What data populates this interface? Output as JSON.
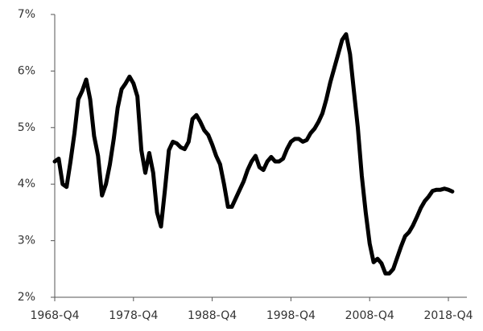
{
  "chart_data": {
    "type": "line",
    "categories": [
      "1968-Q4",
      null,
      null,
      null,
      null,
      null,
      null,
      null,
      null,
      null,
      null,
      null,
      null,
      null,
      null,
      null,
      null,
      null,
      null,
      null,
      "1978-Q4",
      null,
      null,
      null,
      null,
      null,
      null,
      null,
      null,
      null,
      null,
      null,
      null,
      null,
      null,
      null,
      null,
      null,
      null,
      null,
      "1988-Q4",
      null,
      null,
      null,
      null,
      null,
      null,
      null,
      null,
      null,
      null,
      null,
      null,
      null,
      null,
      null,
      null,
      null,
      null,
      null,
      "1998-Q4",
      null,
      null,
      null,
      null,
      null,
      null,
      null,
      null,
      null,
      null,
      null,
      null,
      null,
      null,
      null,
      null,
      null,
      null,
      null,
      "2008-Q4",
      null,
      null,
      null,
      null,
      null,
      null,
      null,
      null,
      null,
      null,
      null,
      null,
      null,
      null,
      null,
      null,
      null,
      null,
      null,
      "2018-Q4",
      null
    ],
    "values": [
      4.4,
      4.45,
      4.0,
      3.95,
      4.4,
      4.9,
      5.5,
      5.65,
      5.85,
      5.5,
      4.85,
      4.5,
      3.8,
      4.0,
      4.35,
      4.8,
      5.35,
      5.68,
      5.78,
      5.9,
      5.78,
      5.55,
      4.6,
      4.2,
      4.55,
      4.2,
      3.5,
      3.25,
      3.9,
      4.6,
      4.75,
      4.72,
      4.65,
      4.62,
      4.75,
      5.15,
      5.22,
      5.1,
      4.95,
      4.87,
      4.7,
      4.5,
      4.35,
      4.0,
      3.6,
      3.6,
      3.75,
      3.9,
      4.05,
      4.25,
      4.4,
      4.5,
      4.3,
      4.25,
      4.4,
      4.48,
      4.4,
      4.4,
      4.45,
      4.62,
      4.75,
      4.8,
      4.8,
      4.75,
      4.78,
      4.9,
      4.98,
      5.1,
      5.25,
      5.5,
      5.8,
      6.05,
      6.3,
      6.55,
      6.65,
      6.3,
      5.65,
      5.0,
      4.15,
      3.5,
      2.95,
      2.62,
      2.68,
      2.6,
      2.42,
      2.42,
      2.5,
      2.7,
      2.9,
      3.08,
      3.15,
      3.27,
      3.42,
      3.58,
      3.7,
      3.78,
      3.88,
      3.9,
      3.9,
      3.92,
      3.9,
      3.87
    ],
    "color": "#000000",
    "ylim": [
      2,
      7
    ],
    "yticks": [
      {
        "value": 2,
        "label": "2%"
      },
      {
        "value": 3,
        "label": "3%"
      },
      {
        "value": 4,
        "label": "4%"
      },
      {
        "value": 5,
        "label": "5%"
      },
      {
        "value": 6,
        "label": "6%"
      },
      {
        "value": 7,
        "label": "7%"
      }
    ],
    "grid": false
  }
}
